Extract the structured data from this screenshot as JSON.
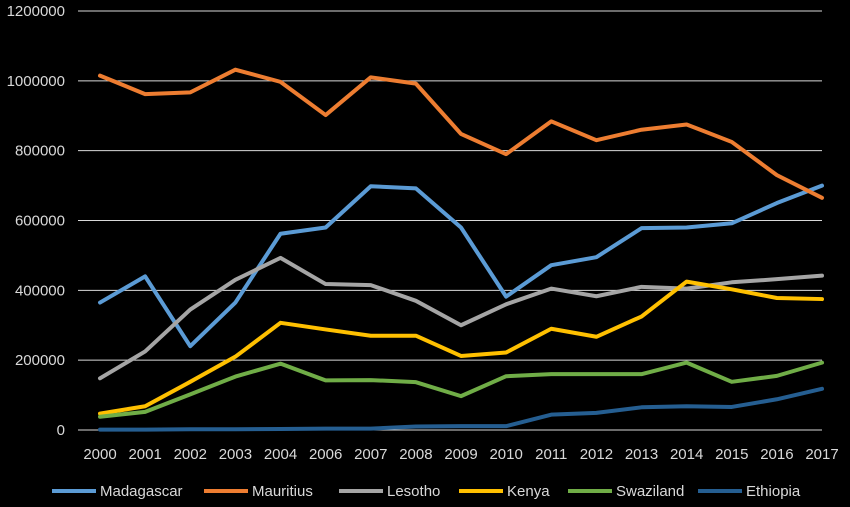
{
  "chart_data": {
    "type": "line",
    "title": "",
    "xlabel": "",
    "ylabel": "",
    "categories": [
      "2000",
      "2001",
      "2002",
      "2003",
      "2004",
      "2006",
      "2007",
      "2008",
      "2009",
      "2010",
      "2011",
      "2012",
      "2013",
      "2014",
      "2015",
      "2016",
      "2017"
    ],
    "ylim": [
      0,
      1200000
    ],
    "yticks": [
      "0",
      "200000",
      "400000",
      "600000",
      "800000",
      "1000000",
      "1200000"
    ],
    "grid": true,
    "legend": "bottom",
    "series": [
      {
        "name": "Madagascar",
        "color": "#5b9bd5",
        "values": [
          365000,
          440000,
          240000,
          365000,
          562000,
          580000,
          698000,
          692000,
          580000,
          382000,
          472000,
          495000,
          578000,
          580000,
          592000,
          650000,
          700000
        ]
      },
      {
        "name": "Mauritius",
        "color": "#ed7d31",
        "values": [
          1015000,
          962000,
          967000,
          1032000,
          997000,
          902000,
          1010000,
          992000,
          848000,
          790000,
          884000,
          830000,
          860000,
          875000,
          825000,
          730000,
          665000
        ]
      },
      {
        "name": "Lesotho",
        "color": "#a5a5a5",
        "values": [
          148000,
          225000,
          345000,
          430000,
          493000,
          418000,
          415000,
          370000,
          300000,
          360000,
          405000,
          383000,
          410000,
          405000,
          423000,
          432000,
          442000
        ]
      },
      {
        "name": "Kenya",
        "color": "#ffc000",
        "values": [
          47000,
          68000,
          138000,
          210000,
          307000,
          288000,
          270000,
          270000,
          212000,
          222000,
          290000,
          267000,
          325000,
          425000,
          403000,
          378000,
          375000
        ]
      },
      {
        "name": "Swaziland",
        "color": "#70ad47",
        "values": [
          38000,
          52000,
          102000,
          153000,
          190000,
          142000,
          143000,
          137000,
          97000,
          154000,
          160000,
          160000,
          160000,
          193000,
          138000,
          155000,
          193000
        ]
      },
      {
        "name": "Ethiopia",
        "color": "#255e91",
        "values": [
          1000,
          1000,
          2000,
          2000,
          3000,
          4000,
          4000,
          10000,
          11000,
          11000,
          44000,
          49000,
          65000,
          68000,
          66000,
          88000,
          118000
        ]
      }
    ]
  }
}
